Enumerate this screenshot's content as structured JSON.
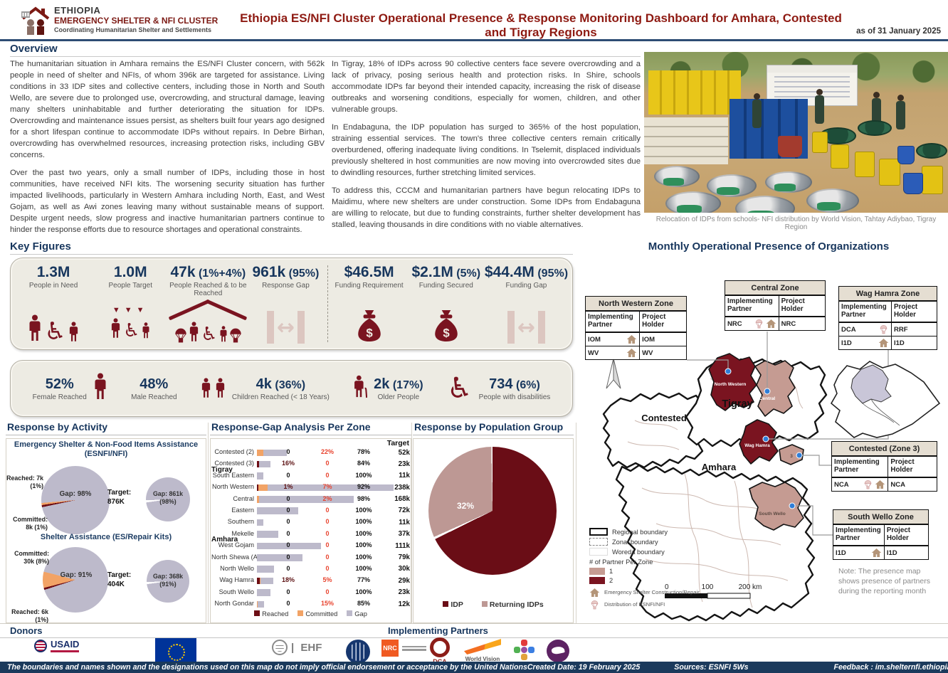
{
  "colors": {
    "navy": "#17365d",
    "title_red": "#8e1a12",
    "maroon_icon": "#7a1420",
    "reached": "#6d0e15",
    "committed": "#f2a366",
    "gap_gray": "#bdbacb",
    "rose": "#c59b92",
    "zone_dark_red": "#7a1420",
    "red_text": "#e8432e",
    "footer_bar": "#1b3a5c",
    "idp": "#6a0d16",
    "returning": "#bd9894"
  },
  "header": {
    "org_line1": "ETHIOPIA",
    "org_line2": "EMERGENCY SHELTER & NFI CLUSTER",
    "org_line3": "Coordinating Humanitarian Shelter and Settlements",
    "title": "Ethiopia ES/NFI Cluster Operational Presence & Response Monitoring Dashboard for  Amhara, Contested and Tigray Regions",
    "as_of": "as of 31 January 2025"
  },
  "overview": {
    "heading": "Overview",
    "col1": [
      "The humanitarian situation in Amhara remains the ES/NFI Cluster concern, with 562k people in need of shelter and NFIs, of whom 396k are targeted for assistance. Living conditions in 33 IDP sites and collective centers, including those in North and South Wello, are severe due to prolonged use, overcrowding, and structural damage, leaving many shelters uninhabitable and further deteriorating the situation for IDPs. Overcrowding and maintenance issues persist, as shelters built four years ago designed for a short lifespan continue to accommodate IDPs without repairs. In Debre Birhan, overcrowding has overwhelmed resources, increasing protection risks, including GBV concerns.",
      "Over the past two years, only a small number of IDPs, including those in host communities, have received NFI kits. The worsening security situation has further impacted livelihoods, particularly in Western Amhara including North, East, and West Gojam, as well as Awi zones leaving many without sustainable means of support. Despite urgent needs, slow progress and inactive humanitarian partners continue to hinder the response efforts due to resource shortages and operational constraints."
    ],
    "col2": [
      "In Tigray, 18% of IDPs across 90 collective centers face severe overcrowding and a lack of privacy, posing serious health and protection risks. In Shire, schools accommodate IDPs far beyond their intended capacity, increasing the risk of disease outbreaks and worsening conditions, especially for women, children, and other vulnerable groups.",
      "In Endabaguna, the IDP population has surged to 365% of the host population, straining essential services. The town's three collective centers remain critically overburdened, offering inadequate living conditions. In Tselemit, displaced individuals previously sheltered in host communities are now moving into overcrowded sites due to dwindling resources, further stretching limited services.",
      "To address this, CCCM and humanitarian partners have begun relocating IDPs to Maidimu, where new shelters are under construction. Some IDPs from Endabaguna are willing to relocate, but due to funding constraints, further shelter development has stalled, leaving thousands in dire conditions with no viable alternatives."
    ],
    "photo_caption": "Relocation of IDPs from schools- NFI distribution by World Vision, Tahtay Adiybao, Tigray Region"
  },
  "key_figures": {
    "heading": "Key Figures",
    "row1": [
      {
        "value": "1.3M",
        "suffix": "",
        "label": "People in Need",
        "icon": "pin"
      },
      {
        "value": "1.0M",
        "suffix": "",
        "label": "People Target",
        "icon": "target"
      },
      {
        "value": "47k",
        "suffix": " (1%+4%)",
        "label": "People Reached & to be Reached",
        "icon": "reach"
      },
      {
        "value": "961k",
        "suffix": " (95%)",
        "label": "Response Gap",
        "icon": "gap"
      },
      {
        "value": "$46.5M",
        "suffix": "",
        "label": "Funding Requirement",
        "icon": "bag"
      },
      {
        "value": "$2.1M",
        "suffix": " (5%)",
        "label": "Funding Secured",
        "icon": "bag"
      },
      {
        "value": "$44.4M",
        "suffix": " (95%)",
        "label": "Funding Gap",
        "icon": "gap"
      }
    ],
    "row2": [
      {
        "value": "52%",
        "suffix": "",
        "label": "Female Reached",
        "icon": "person",
        "icon_pos": "right"
      },
      {
        "value": "48%",
        "suffix": "",
        "label": "Male Reached",
        "icon": "",
        "icon_pos": ""
      },
      {
        "value": "4k",
        "suffix": " (36%)",
        "label": "Children Reached (< 18 Years)",
        "icon": "children",
        "icon_pos": "left"
      },
      {
        "value": "2k",
        "suffix": " (17%)",
        "label": "Older People",
        "icon": "older",
        "icon_pos": "left"
      },
      {
        "value": "734",
        "suffix": " (6%)",
        "label": "People with disabilities",
        "icon": "pwd",
        "icon_pos": "left"
      }
    ]
  },
  "panels": {
    "activity_heading": "Response by Activity",
    "gap_heading": "Response-Gap Analysis Per Zone",
    "population_heading": "Response by Population Group"
  },
  "map_panel": {
    "heading": "Monthly Operational Presence of Organizations",
    "col_partner": "Implementing Partner",
    "col_holder": "Project Holder",
    "zone_tables": [
      {
        "title": "North Western  Zone",
        "rows": [
          {
            "partner": "IOM",
            "icons": [
              "shelter"
            ],
            "holder": "IOM"
          },
          {
            "partner": "WV",
            "icons": [
              "shelter"
            ],
            "holder": "WV"
          }
        ]
      },
      {
        "title": "Central Zone",
        "rows": [
          {
            "partner": "NRC",
            "icons": [
              "distribution",
              "shelter"
            ],
            "holder": "NRC"
          }
        ]
      },
      {
        "title": "Wag Hamra Zone",
        "rows": [
          {
            "partner": "DCA",
            "icons": [
              "distribution"
            ],
            "holder": "RRF"
          },
          {
            "partner": "I1D",
            "icons": [
              "shelter"
            ],
            "holder": "I1D"
          }
        ]
      },
      {
        "title": "Contested (Zone 3)",
        "rows": [
          {
            "partner": "NCA",
            "icons": [
              "distribution",
              "shelter"
            ],
            "holder": "NCA"
          }
        ]
      },
      {
        "title": "South Wello Zone",
        "rows": [
          {
            "partner": "I1D",
            "icons": [
              "shelter"
            ],
            "holder": "I1D"
          }
        ]
      }
    ],
    "labels": {
      "contested": "Contested",
      "tigray": "Tigray",
      "amhara": "Amhara"
    },
    "zone_labels": {
      "north_western": "North Western",
      "central": "Central",
      "wag_hamra": "Wag Hamra",
      "south_wello": "South Wello",
      "zone3": "3"
    },
    "legend": {
      "regional": "Regional boundary",
      "zonal": "Zonal boundary",
      "woreda": "Woreda boundary",
      "partner_head": "# of Partner Per Zone",
      "one": "1",
      "two": "2",
      "shelter": "Emergency Shelter Construction/Repair",
      "distribution": "Distribution of ESNFI/NFI"
    },
    "scale": {
      "t0": "0",
      "t100": "100",
      "t200": "200 km"
    },
    "note": "Note: The presence map shows presence  of partners during the reporting month"
  },
  "donors": {
    "heading": "Donors",
    "usaid": "USAID",
    "ehf": "EHF"
  },
  "partners": {
    "heading": "Implementing Partners",
    "nrc": "NRC",
    "dca": "DCA",
    "wv": "World Vision"
  },
  "footer": {
    "disclaimer": "The boundaries and names shown and the designations used on this map do not imply official endorsement or acceptance by the United Nations",
    "created": "Created Date: 19 February  2025",
    "sources": "Sources: ESNFI 5Ws",
    "feedback": "Feedback : im.shelternfi.ethiopia@gmail.com"
  },
  "chart_data": [
    {
      "id": "esnfi_pie",
      "type": "pie",
      "title": "Emergency Shelter & Non-Food Items Assistance (ESNFI/NFI)",
      "slices": [
        {
          "label": "Reached",
          "pct": 1
        },
        {
          "label": "Committed",
          "pct": 1
        },
        {
          "label": "Gap",
          "pct": 98
        }
      ],
      "ann_tl": "Reached: 7k (1%)",
      "ann_bl": "Committed: 8k (1%)",
      "center": "Gap: 98%",
      "target_label": "Target:",
      "target_value": "876K",
      "small_label": "Gap: 861k (98%)",
      "start": 258
    },
    {
      "id": "shelter_pie",
      "type": "pie",
      "title": "Shelter Assistance (ES/Repair Kits)",
      "slices": [
        {
          "label": "Reached",
          "pct": 1
        },
        {
          "label": "Committed",
          "pct": 8
        },
        {
          "label": "Gap",
          "pct": 91
        }
      ],
      "ann_tl": "Committed: 30k (8%)",
      "ann_bl": "Reached: 6k (1%)",
      "center": "Gap: 91%",
      "target_label": "Target:",
      "target_value": "404K",
      "small_label": "Gap: 368k (91%)",
      "start": 252
    },
    {
      "id": "gap_zone",
      "type": "bar",
      "title": "Response-Gap Analysis Per Zone",
      "target_header": "Target",
      "legend": [
        "Reached",
        "Committed",
        "Gap"
      ],
      "max_target_k": 238,
      "rows": [
        {
          "zone": "Contested (2)",
          "reached": 0,
          "committed": 22,
          "gap": 78,
          "target_k": 52,
          "target": "52k"
        },
        {
          "zone": "Contested (3)",
          "group": "Tigray",
          "reached": 16,
          "committed": 0,
          "gap": 84,
          "target_k": 23,
          "target": "23k"
        },
        {
          "zone": "South Eastern",
          "reached": 0,
          "committed": 0,
          "gap": 100,
          "target_k": 11,
          "target": "11k"
        },
        {
          "zone": "North Western",
          "reached": 1,
          "committed": 7,
          "gap": 92,
          "target_k": 238,
          "target": "238k"
        },
        {
          "zone": "Central",
          "reached": 0,
          "committed": 2,
          "gap": 98,
          "target_k": 168,
          "target": "168k"
        },
        {
          "zone": "Eastern",
          "reached": 0,
          "committed": 0,
          "gap": 100,
          "target_k": 72,
          "target": "72k"
        },
        {
          "zone": "Southern",
          "reached": 0,
          "committed": 0,
          "gap": 100,
          "target_k": 11,
          "target": "11k"
        },
        {
          "zone": "Mekelle",
          "group": "Amhara",
          "reached": 0,
          "committed": 0,
          "gap": 100,
          "target_k": 37,
          "target": "37k"
        },
        {
          "zone": "West Gojam",
          "reached": 0,
          "committed": 0,
          "gap": 100,
          "target_k": 111,
          "target": "111k"
        },
        {
          "zone": "North Shewa (AM)",
          "reached": 0,
          "committed": 0,
          "gap": 100,
          "target_k": 79,
          "target": "79k"
        },
        {
          "zone": "North Wello",
          "reached": 0,
          "committed": 0,
          "gap": 100,
          "target_k": 30,
          "target": "30k"
        },
        {
          "zone": "Wag Hamra",
          "reached": 18,
          "committed": 5,
          "gap": 77,
          "target_k": 29,
          "target": "29k"
        },
        {
          "zone": "South Wello",
          "reached": 0,
          "committed": 0,
          "gap": 100,
          "target_k": 23,
          "target": "23k"
        },
        {
          "zone": "North Gondar",
          "reached": 0,
          "committed": 15,
          "gap": 85,
          "target_k": 12,
          "target": "12k"
        }
      ]
    },
    {
      "id": "pop_group",
      "type": "pie",
      "title": "Response by Population Group",
      "slices": [
        {
          "label": "IDP",
          "pct": 68
        },
        {
          "label": "Returning IDPs",
          "pct": 32
        }
      ],
      "legend": [
        "IDP",
        "Returning IDPs"
      ]
    }
  ]
}
